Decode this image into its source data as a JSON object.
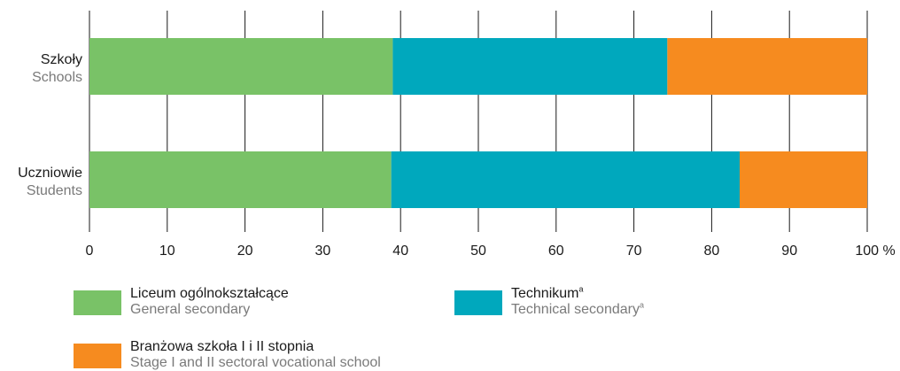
{
  "chart_data": {
    "type": "bar",
    "orientation": "horizontal",
    "stacked": true,
    "percent": true,
    "categories": [
      {
        "pl": "Szkoły",
        "en": "Schools"
      },
      {
        "pl": "Uczniowie",
        "en": "Students"
      }
    ],
    "series": [
      {
        "name_pl": "Liceum ogólnokształcące",
        "name_en": "General secondary",
        "color": "#79c267",
        "values": [
          39.0,
          38.8
        ]
      },
      {
        "name_pl": "Technikum",
        "name_en": "Technical secondary",
        "superscript": "a",
        "color": "#00a8bd",
        "values": [
          35.3,
          44.8
        ]
      },
      {
        "name_pl": "Branżowa szkoła I i II stopnia",
        "name_en": "Stage I and II sectoral vocational school",
        "color": "#f68b1f",
        "values": [
          25.7,
          16.4
        ]
      }
    ],
    "xlim": [
      0,
      100
    ],
    "xticks": [
      0,
      10,
      20,
      30,
      40,
      50,
      60,
      70,
      80,
      90,
      100
    ],
    "x_unit": "%",
    "grid": true,
    "legend_position": "bottom"
  }
}
